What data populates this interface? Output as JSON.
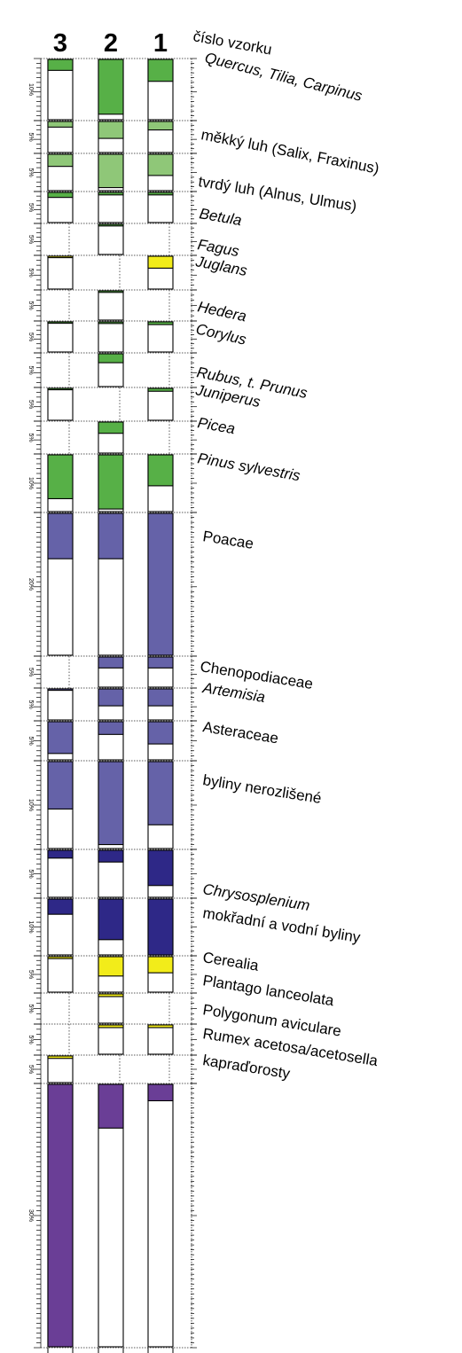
{
  "chart_data": {
    "type": "bar",
    "header_label": "číslo vzorku",
    "samples": [
      "3",
      "2",
      "1"
    ],
    "scale_unit": "%",
    "series": [
      {
        "name": "Quercus, Tilia, Carpinus",
        "italic": true,
        "color": "#57b047",
        "bracket": "10%",
        "max": 11,
        "values": [
          2,
          10,
          4
        ]
      },
      {
        "name": "měkký luh (Salix, Fraxinus)",
        "italic": false,
        "color": "#8fc778",
        "bracket": "5%",
        "max": 5.5,
        "values": [
          1,
          3,
          1.5
        ]
      },
      {
        "name": "tvrdý luh (Alnus, Ulmus)",
        "italic": false,
        "color": "#8fc778",
        "bracket": "5%",
        "max": 6,
        "values": [
          2,
          5.5,
          3.5
        ]
      },
      {
        "name": "Betula",
        "italic": true,
        "color": "#57b047",
        "bracket": "5%",
        "max": 6,
        "values": [
          1,
          0.5,
          0.5
        ]
      },
      {
        "name": "Fagus",
        "italic": true,
        "color": "#57b047",
        "bracket": "5%",
        "max": 5.5,
        "values": [
          null,
          0.3,
          null
        ]
      },
      {
        "name": "Juglans",
        "italic": true,
        "color": "#f2ec1a",
        "bracket": "5%",
        "max": 5.5,
        "values": [
          0.2,
          null,
          2
        ]
      },
      {
        "name": "Hedera",
        "italic": true,
        "color": "#57b047",
        "bracket": "5%",
        "max": 5.5,
        "values": [
          null,
          0.3,
          null
        ]
      },
      {
        "name": "Corylus",
        "italic": true,
        "color": "#57b047",
        "bracket": "5%",
        "max": 5.5,
        "values": [
          0.2,
          0.3,
          0.5
        ]
      },
      {
        "name": "Rubus, t. Prunus",
        "italic": true,
        "color": "#57b047",
        "bracket": "5%",
        "max": 5.5,
        "values": [
          null,
          1.5,
          null
        ]
      },
      {
        "name": "Juniperus",
        "italic": true,
        "color": "#57b047",
        "bracket": "5%",
        "max": 5.5,
        "values": [
          0.2,
          null,
          0.5
        ]
      },
      {
        "name": "Picea",
        "italic": true,
        "color": "#57b047",
        "bracket": "5%",
        "max": 5.5,
        "values": [
          null,
          2,
          null
        ]
      },
      {
        "name": "Pinus sylvestris",
        "italic": true,
        "color": "#57b047",
        "bracket": "10%",
        "max": 11,
        "values": [
          8.5,
          10.5,
          6
        ]
      },
      {
        "name": "Poacae",
        "italic": false,
        "color": "#6562a8",
        "bracket": "20%",
        "max": 25,
        "values": [
          8,
          8,
          25
        ]
      },
      {
        "name": "Chenopodiaceae",
        "italic": false,
        "color": "#6562a8",
        "bracket": "5%",
        "max": 5.5,
        "values": [
          null,
          2,
          2
        ]
      },
      {
        "name": "Artemisia",
        "italic": true,
        "color": "#6562a8",
        "bracket": "5%",
        "max": 5.5,
        "values": [
          0.2,
          3,
          3
        ]
      },
      {
        "name": "Asteraceae",
        "italic": false,
        "color": "#6562a8",
        "bracket": "5%",
        "max": 6,
        "values": [
          5,
          2,
          3.5
        ]
      },
      {
        "name": "byliny nerozlišené",
        "italic": false,
        "color": "#6562a8",
        "bracket": "10%",
        "max": 11,
        "values": [
          6,
          10.5,
          8
        ]
      },
      {
        "name": "Chrysosplenium",
        "italic": true,
        "color": "#2e2887",
        "bracket": "5%",
        "max": 6,
        "values": [
          1,
          1.5,
          4.5
        ]
      },
      {
        "name": "mokřadní a vodní byliny",
        "italic": false,
        "color": "#2e2887",
        "bracket": "10%",
        "max": 11,
        "values": [
          3,
          8,
          11
        ]
      },
      {
        "name": "Cerealia",
        "italic": false,
        "color": "#f2ec1a",
        "bracket": "5%",
        "max": 5.5,
        "values": [
          0.3,
          3,
          2.5
        ]
      },
      {
        "name": "Plantago lanceolata",
        "italic": false,
        "color": "#f2ec1a",
        "bracket": "5%",
        "max": 5.5,
        "values": [
          null,
          0.5,
          null
        ]
      },
      {
        "name": "Polygonum aviculare",
        "italic": false,
        "color": "#f2ec1a",
        "bracket": "5%",
        "max": 5.5,
        "values": [
          null,
          0.5,
          0.5
        ]
      },
      {
        "name": "Rumex acetosa/acetosella",
        "italic": false,
        "color": "#f2ec1a",
        "bracket": "5%",
        "max": 5.5,
        "values": [
          0.5,
          null,
          null
        ]
      },
      {
        "name": "kapraďorosty",
        "italic": false,
        "color": "#6a3e96",
        "bracket": "30%",
        "max": 48,
        "values": [
          48,
          8,
          3
        ]
      }
    ]
  }
}
